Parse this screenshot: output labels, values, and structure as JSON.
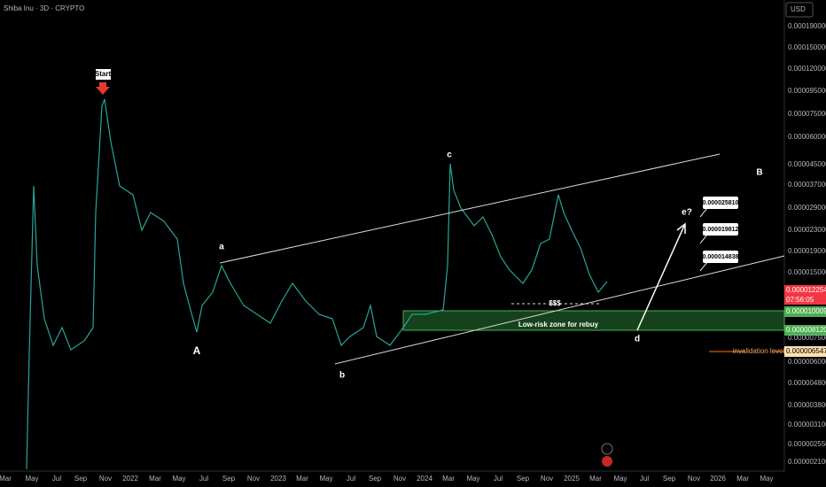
{
  "header": {
    "symbol": "Shiba Inu · 3D · CRYPTO",
    "currency": "USD"
  },
  "price_axis": {
    "labels": [
      "0.000190000",
      "0.000150000",
      "0.000120000",
      "0.000095000",
      "0.000075000",
      "0.000060000",
      "0.000045000",
      "0.000037000",
      "0.000029000",
      "0.000023000",
      "0.000019000",
      "0.000015000",
      "0.000007500",
      "0.000006000",
      "0.000004800",
      "0.000003800",
      "0.000003100",
      "0.000002550",
      "0.000002100"
    ],
    "current_price": "0.000012254",
    "countdown": "07:56:05",
    "zone_top": "0.000010009",
    "zone_bottom": "0.000008120",
    "invalidation": "0.000006547"
  },
  "time_axis": {
    "labels": [
      "Mar",
      "May",
      "Jul",
      "Sep",
      "Nov",
      "2022",
      "Mar",
      "May",
      "Jul",
      "Sep",
      "Nov",
      "2023",
      "Mar",
      "May",
      "Jul",
      "Sep",
      "Nov",
      "2024",
      "Mar",
      "May",
      "Jul",
      "Sep",
      "Nov",
      "2025",
      "Mar",
      "May",
      "Jul",
      "Sep",
      "Nov",
      "2026",
      "Mar",
      "May"
    ]
  },
  "annotations": {
    "start": "Start",
    "wave_a": "a",
    "wave_A": "A",
    "wave_b": "b",
    "wave_c": "c",
    "wave_d": "d",
    "wave_B": "B",
    "wave_e": "e?",
    "liquidity": "$$$",
    "zone": "Low-risk zone for rebuy",
    "invalidation": "invalidation level",
    "targets": [
      "0.000025810",
      "0.000019812",
      "0.000014838"
    ]
  }
}
